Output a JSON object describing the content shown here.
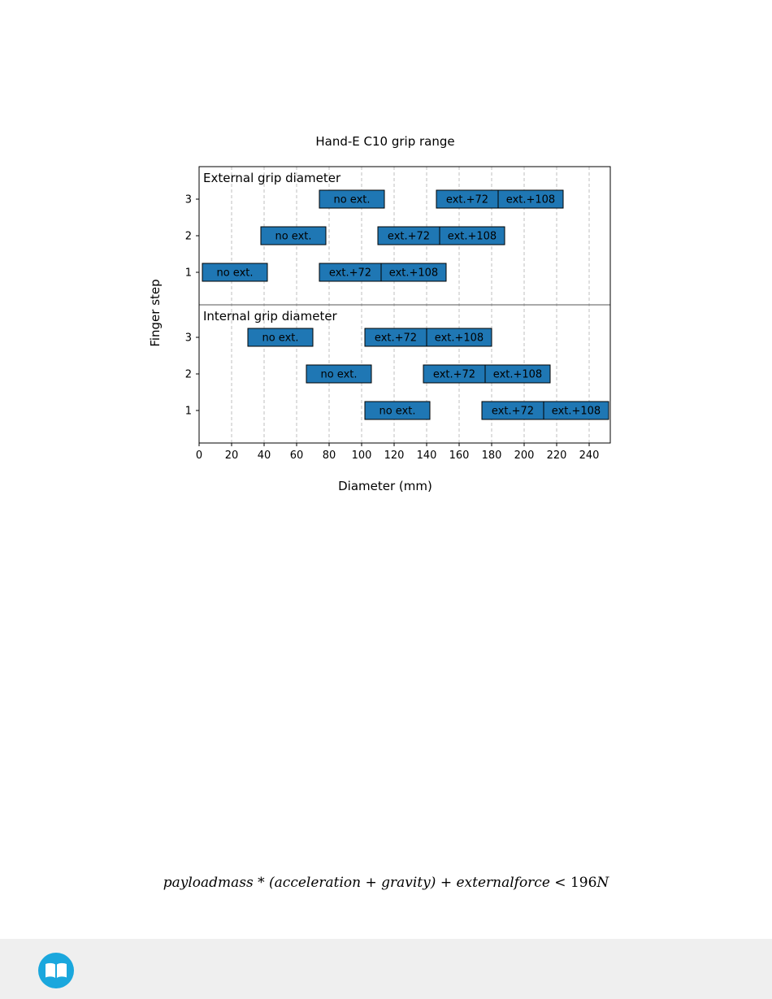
{
  "chart_data": {
    "type": "bar",
    "orientation": "horizontal",
    "title": "Hand-E C10 grip range",
    "xlabel": "Diameter (mm)",
    "ylabel": "Finger step",
    "xlim": [
      0,
      253
    ],
    "xticks": [
      0,
      20,
      40,
      60,
      80,
      100,
      120,
      140,
      160,
      180,
      200,
      220,
      240
    ],
    "grid": "x, dashed",
    "bar_color": "#1f77b4",
    "panels": [
      {
        "name": "External grip diameter",
        "yticks": [
          3,
          2,
          1
        ],
        "bars": [
          {
            "step": 3,
            "label": "no ext.",
            "start": 74,
            "end": 114
          },
          {
            "step": 3,
            "label": "ext.+72",
            "start": 146,
            "end": 184
          },
          {
            "step": 3,
            "label": "ext.+108",
            "start": 184,
            "end": 224
          },
          {
            "step": 2,
            "label": "no ext.",
            "start": 38,
            "end": 78
          },
          {
            "step": 2,
            "label": "ext.+72",
            "start": 110,
            "end": 148
          },
          {
            "step": 2,
            "label": "ext.+108",
            "start": 148,
            "end": 188
          },
          {
            "step": 1,
            "label": "no ext.",
            "start": 2,
            "end": 42
          },
          {
            "step": 1,
            "label": "ext.+72",
            "start": 74,
            "end": 112
          },
          {
            "step": 1,
            "label": "ext.+108",
            "start": 112,
            "end": 152
          }
        ]
      },
      {
        "name": "Internal grip diameter",
        "yticks": [
          3,
          2,
          1
        ],
        "bars": [
          {
            "step": 3,
            "label": "no ext.",
            "start": 30,
            "end": 70
          },
          {
            "step": 3,
            "label": "ext.+72",
            "start": 102,
            "end": 140
          },
          {
            "step": 3,
            "label": "ext.+108",
            "start": 140,
            "end": 180
          },
          {
            "step": 2,
            "label": "no ext.",
            "start": 66,
            "end": 106
          },
          {
            "step": 2,
            "label": "ext.+72",
            "start": 138,
            "end": 176
          },
          {
            "step": 2,
            "label": "ext.+108",
            "start": 176,
            "end": 216
          },
          {
            "step": 1,
            "label": "no ext.",
            "start": 102,
            "end": 142
          },
          {
            "step": 1,
            "label": "ext.+72",
            "start": 174,
            "end": 212
          },
          {
            "step": 1,
            "label": "ext.+108",
            "start": 212,
            "end": 252
          }
        ]
      }
    ]
  },
  "formula": {
    "lhs": "payloadmass * (acceleration + gravity) + externalforce",
    "op": "<",
    "value": "196",
    "unit": "N"
  },
  "footer": {
    "icon": "book-icon",
    "icon_color": "#1aa7dd"
  }
}
